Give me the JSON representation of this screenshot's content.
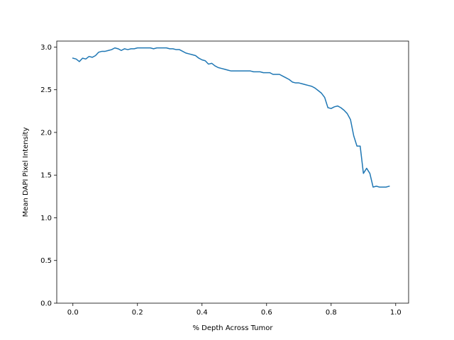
{
  "chart_data": {
    "type": "line",
    "title": "",
    "xlabel": "% Depth Across Tumor",
    "ylabel": "Mean DAPI Pixel Intensity",
    "xlim": [
      -0.05,
      1.04
    ],
    "ylim": [
      0.0,
      3.07
    ],
    "xticks": [
      0.0,
      0.2,
      0.4,
      0.6,
      0.8,
      1.0
    ],
    "xtick_labels": [
      "0.0",
      "0.2",
      "0.4",
      "0.6",
      "0.8",
      "1.0"
    ],
    "yticks": [
      0.0,
      0.5,
      1.0,
      1.5,
      2.0,
      2.5,
      3.0
    ],
    "ytick_labels": [
      "0.0",
      "0.5",
      "1.0",
      "1.5",
      "2.0",
      "2.5",
      "3.0"
    ],
    "grid": false,
    "series": [
      {
        "color": "#1f77b4",
        "x": [
          0.0,
          0.01,
          0.02,
          0.03,
          0.04,
          0.05,
          0.06,
          0.07,
          0.08,
          0.09,
          0.1,
          0.11,
          0.12,
          0.13,
          0.14,
          0.15,
          0.16,
          0.17,
          0.18,
          0.19,
          0.2,
          0.21,
          0.22,
          0.23,
          0.24,
          0.25,
          0.26,
          0.27,
          0.28,
          0.29,
          0.3,
          0.31,
          0.32,
          0.33,
          0.34,
          0.35,
          0.36,
          0.37,
          0.38,
          0.39,
          0.4,
          0.41,
          0.42,
          0.43,
          0.44,
          0.45,
          0.46,
          0.47,
          0.48,
          0.49,
          0.5,
          0.51,
          0.52,
          0.53,
          0.54,
          0.55,
          0.56,
          0.57,
          0.58,
          0.59,
          0.6,
          0.61,
          0.62,
          0.63,
          0.64,
          0.65,
          0.66,
          0.67,
          0.68,
          0.69,
          0.7,
          0.71,
          0.72,
          0.73,
          0.74,
          0.75,
          0.76,
          0.77,
          0.78,
          0.79,
          0.8,
          0.81,
          0.82,
          0.83,
          0.84,
          0.85,
          0.86,
          0.87,
          0.88,
          0.89,
          0.9,
          0.91,
          0.92,
          0.93,
          0.94,
          0.95,
          0.96,
          0.97,
          0.98
        ],
        "y": [
          2.87,
          2.86,
          2.83,
          2.87,
          2.86,
          2.89,
          2.88,
          2.9,
          2.94,
          2.95,
          2.95,
          2.96,
          2.97,
          2.99,
          2.98,
          2.96,
          2.98,
          2.97,
          2.98,
          2.98,
          2.99,
          2.99,
          2.99,
          2.99,
          2.99,
          2.98,
          2.99,
          2.99,
          2.99,
          2.99,
          2.98,
          2.98,
          2.97,
          2.97,
          2.95,
          2.93,
          2.92,
          2.91,
          2.9,
          2.87,
          2.85,
          2.84,
          2.8,
          2.81,
          2.78,
          2.76,
          2.75,
          2.74,
          2.73,
          2.72,
          2.72,
          2.72,
          2.72,
          2.72,
          2.72,
          2.72,
          2.71,
          2.71,
          2.71,
          2.7,
          2.7,
          2.7,
          2.68,
          2.68,
          2.68,
          2.66,
          2.64,
          2.62,
          2.59,
          2.58,
          2.58,
          2.57,
          2.56,
          2.55,
          2.54,
          2.52,
          2.49,
          2.46,
          2.41,
          2.29,
          2.28,
          2.3,
          2.31,
          2.29,
          2.26,
          2.22,
          2.15,
          1.96,
          1.84,
          1.84,
          1.52,
          1.58,
          1.52,
          1.36,
          1.37,
          1.36,
          1.36,
          1.36,
          1.37
        ]
      }
    ]
  }
}
